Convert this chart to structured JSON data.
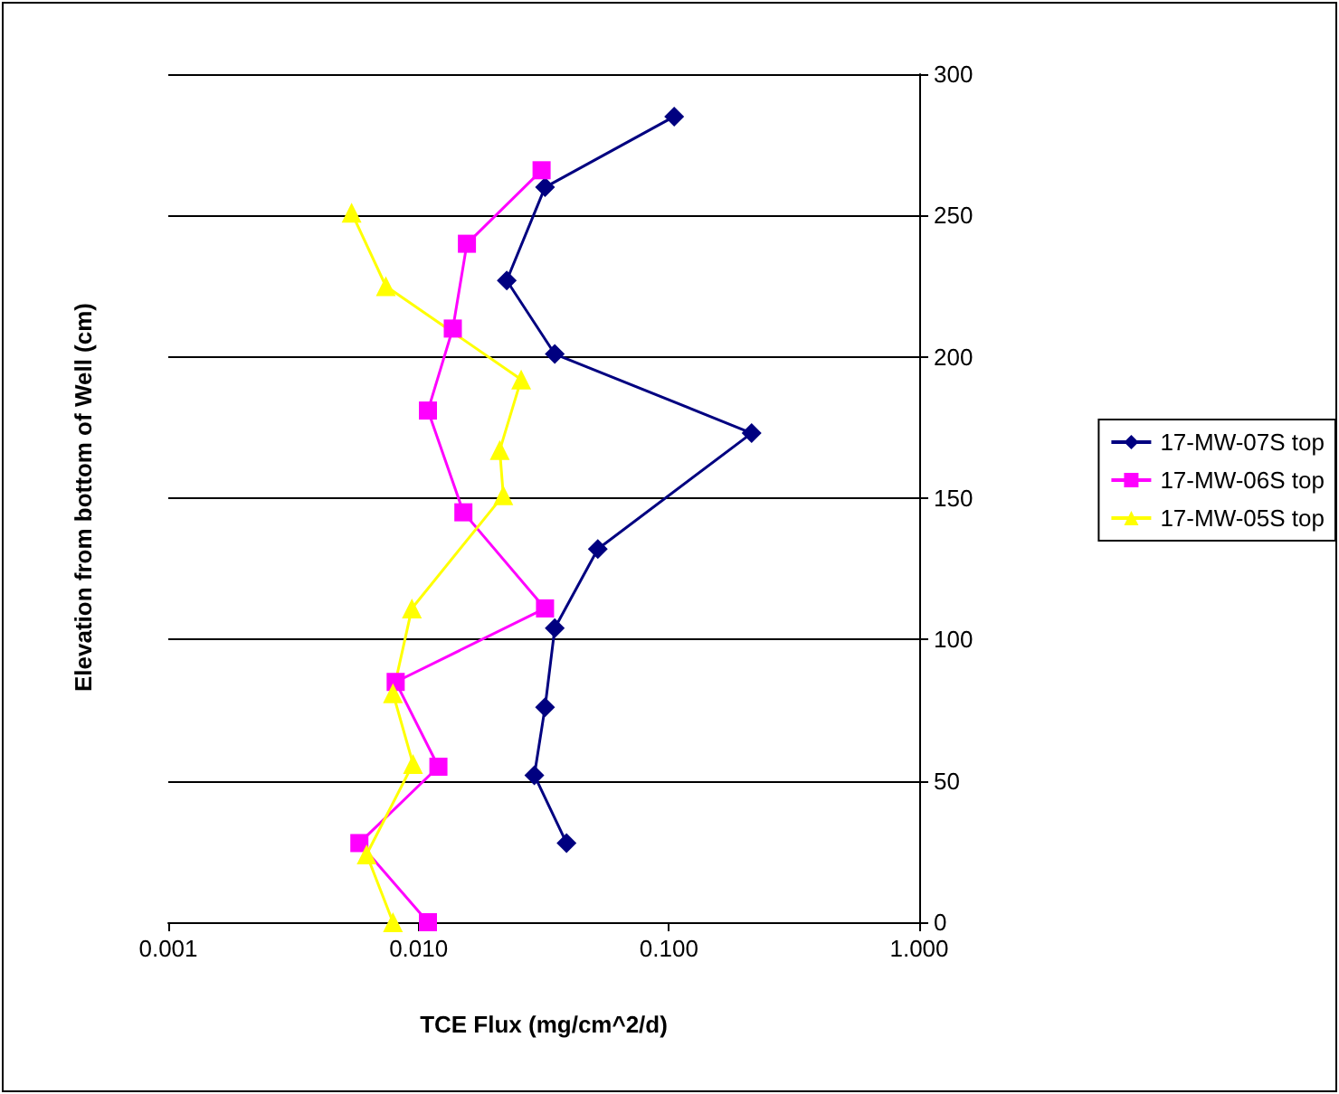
{
  "chart_data": {
    "type": "line",
    "xlabel": "TCE Flux (mg/cm^2/d)",
    "ylabel": "Elevation from bottom of Well (cm)",
    "log": "x",
    "grid": "y",
    "legend": "right",
    "line_style": "solid",
    "xlim": [
      0.001,
      1
    ],
    "xticks": [
      {
        "value": 0.001,
        "label": "0.001"
      },
      {
        "value": 0.01,
        "label": "0.010"
      },
      {
        "value": 0.1,
        "label": "0.100"
      },
      {
        "value": 1,
        "label": "1.000"
      }
    ],
    "ylim": [
      0,
      300
    ],
    "yticks": [
      0,
      50,
      100,
      150,
      200,
      250,
      300
    ],
    "series": [
      {
        "name": "17-MW-07S top",
        "color": "#000080",
        "marker": "diamond",
        "x": [
          0.105,
          0.032,
          0.0225,
          0.035,
          0.214,
          0.052,
          0.035,
          0.032,
          0.029,
          0.039
        ],
        "values": [
          285,
          260,
          227,
          201,
          173,
          132,
          104,
          76,
          52,
          28
        ]
      },
      {
        "name": "17-MW-06S top",
        "color": "#ff00ff",
        "marker": "square",
        "x": [
          0.031,
          0.0156,
          0.0137,
          0.0109,
          0.0151,
          0.032,
          0.0081,
          0.012,
          0.0058,
          0.0109
        ],
        "values": [
          266,
          240,
          210,
          181,
          145,
          111,
          85,
          55,
          28,
          0
        ]
      },
      {
        "name": "17-MW-05S top",
        "color": "#ffff00",
        "marker": "triangle",
        "x": [
          0.0054,
          0.0074,
          0.0257,
          0.0211,
          0.0218,
          0.0094,
          0.0079,
          0.0095,
          0.0062,
          0.0079
        ],
        "values": [
          251,
          225,
          192,
          167,
          151,
          111,
          81,
          56,
          24,
          0
        ]
      }
    ]
  }
}
